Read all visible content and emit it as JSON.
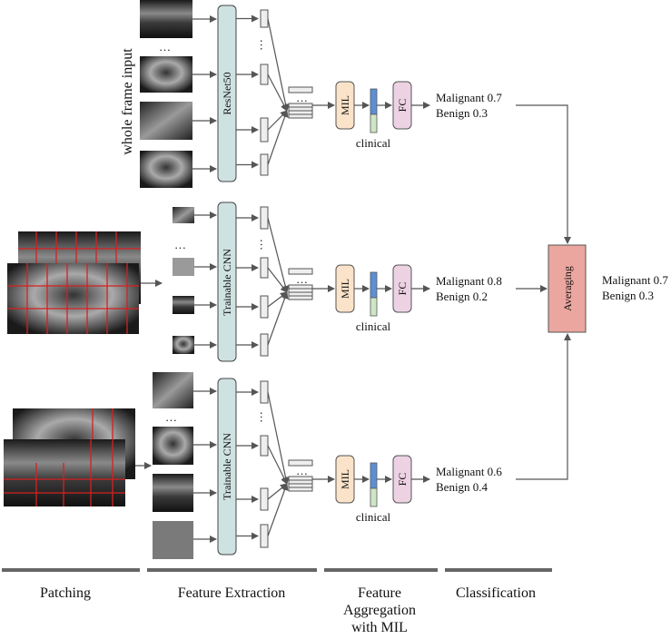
{
  "labels": {
    "whole_frame": "whole frame input",
    "resnet": "ResNet50",
    "cnn": "Trainable CNN",
    "mil": "MIL",
    "fc": "FC",
    "clinical": "clinical",
    "averaging": "Averaging",
    "ellipsis": "…"
  },
  "rows": [
    {
      "malignant": "Malignant 0.7",
      "benign": "Benign 0.3"
    },
    {
      "malignant": "Malignant 0.8",
      "benign": "Benign 0.2"
    },
    {
      "malignant": "Malignant 0.6",
      "benign": "Benign 0.4"
    }
  ],
  "final": {
    "malignant": "Malignant 0.7",
    "benign": "Benign 0.3"
  },
  "stages": [
    "Patching",
    "Feature Extraction",
    "Feature",
    "Aggregation",
    "with MIL",
    "Classification"
  ],
  "colors": {
    "extractor": "#cfe2e2",
    "mil": "#fbe3c9",
    "fc": "#ecd2e3",
    "averaging": "#eba69f",
    "feature_blue": "#5b8fd6",
    "feature_green": "#cfe5c4",
    "grid_red": "#d62020",
    "arrow": "#555555",
    "stage_bar": "#666666"
  }
}
